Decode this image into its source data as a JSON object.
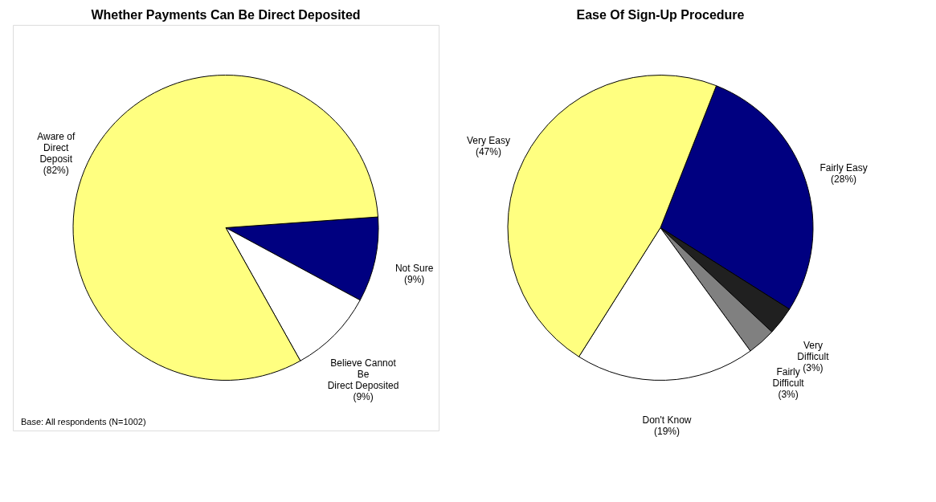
{
  "chart_data": [
    {
      "type": "pie",
      "title": "Whether Payments Can Be Direct Deposited",
      "categories": [
        "Not Sure",
        "Believe Cannot\nBe\nDirect Deposited",
        "Aware of\nDirect\nDeposit"
      ],
      "values": [
        9,
        9,
        82
      ],
      "value_labels": [
        "(9%)",
        "(9%)",
        "(82%)"
      ],
      "colors": [
        "#000080",
        "#ffffff",
        "#ffff80"
      ],
      "annotations": [
        "Base:  All respondents (N=1002)"
      ]
    },
    {
      "type": "pie",
      "title": "Ease Of Sign-Up Procedure",
      "categories": [
        "Fairly Easy",
        "Very\nDifficult",
        "Fairly\nDifficult",
        "Don't Know",
        "Very Easy"
      ],
      "values": [
        28,
        3,
        3,
        19,
        47
      ],
      "value_labels": [
        "(28%)",
        "(3%)",
        "(3%)",
        "(19%)",
        "(47%)"
      ],
      "colors": [
        "#000080",
        "#202020",
        "#808080",
        "#ffffff",
        "#ffff80"
      ]
    }
  ]
}
